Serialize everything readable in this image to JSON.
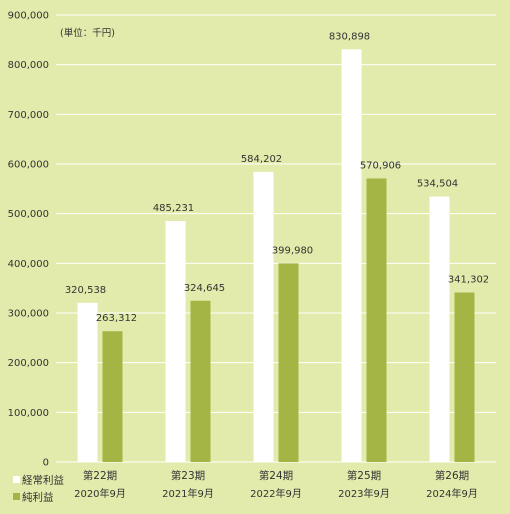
{
  "chart_data": {
    "type": "bar",
    "categories": [
      "第22期",
      "第23期",
      "第24期",
      "第25期",
      "第26期"
    ],
    "category_sublabels": [
      "2020年9月",
      "2021年9月",
      "2022年9月",
      "2023年9月",
      "2024年9月"
    ],
    "series": [
      {
        "name": "経常利益",
        "color": "#ffffff",
        "values": [
          320538,
          485231,
          584202,
          830898,
          534504
        ]
      },
      {
        "name": "純利益",
        "color": "#a4b545",
        "values": [
          263312,
          324645,
          399980,
          570906,
          341302
        ]
      }
    ],
    "unit_note": "(単位：千円)",
    "ylim": [
      0,
      900000
    ],
    "yticks": [
      "0",
      "100,000",
      "200,000",
      "300,000",
      "400,000",
      "500,000",
      "600,000",
      "700,000",
      "800,000",
      "900,000"
    ],
    "grid": true,
    "legend_position": "bottom-left",
    "background": "#e2ebab",
    "grid_color": "#ffffff"
  }
}
